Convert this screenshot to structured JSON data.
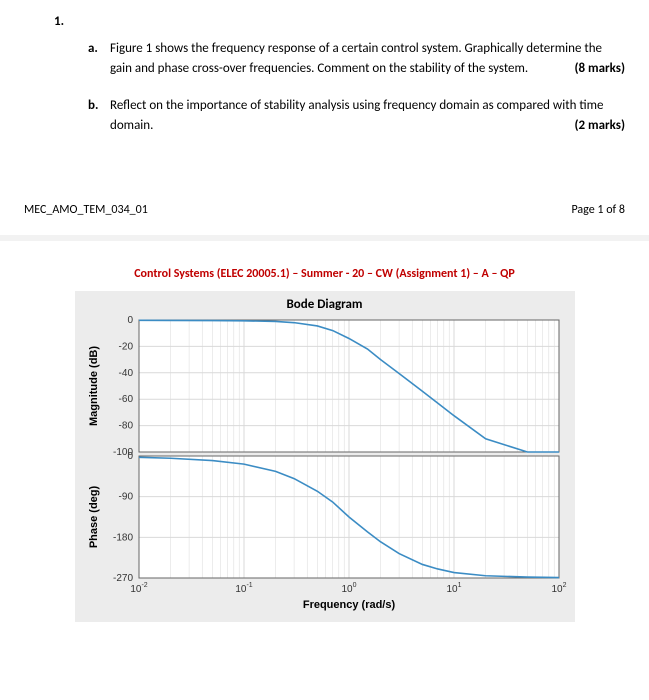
{
  "question": {
    "number": "1.",
    "parts": [
      {
        "letter": "a.",
        "text": "Figure 1 shows the frequency response of a certain control system. Graphically determine the gain and phase cross-over frequencies. Comment on the stability of the system.",
        "marks": "(8 marks)"
      },
      {
        "letter": "b.",
        "text": "Reflect on the importance of stability analysis using frequency domain as compared with time domain.",
        "marks": "(2 marks)"
      }
    ]
  },
  "page_footer": {
    "left": "MEC_AMO_TEM_034_01",
    "right": "Page 1 of 8"
  },
  "course_header": "Control Systems (ELEC 20005.1) – Summer - 20 – CW (Assignment 1) – A – QP",
  "bode": {
    "title": "Bode Diagram",
    "plot_bg": "#ffffff",
    "panel_bg": "#ececec",
    "grid_color": "#d9d9d9",
    "border_color": "#666666",
    "line_color": "#3b8cc4",
    "line_width": 1.6,
    "xlabel": "Frequency  (rad/s)",
    "mag": {
      "ylabel": "Magnitude (dB)",
      "ylim": [
        -100,
        0
      ],
      "yticks": [
        0,
        -20,
        -40,
        -60,
        -80,
        -100
      ],
      "data": [
        [
          0.01,
          -0.2
        ],
        [
          0.02,
          -0.3
        ],
        [
          0.05,
          -0.4
        ],
        [
          0.1,
          -0.6
        ],
        [
          0.2,
          -1.1
        ],
        [
          0.3,
          -2.0
        ],
        [
          0.5,
          -4.5
        ],
        [
          0.7,
          -8.0
        ],
        [
          1.0,
          -14.0
        ],
        [
          1.5,
          -22.0
        ],
        [
          2.0,
          -30.0
        ],
        [
          3.0,
          -40.5
        ],
        [
          5.0,
          -54.0
        ],
        [
          7.0,
          -63.0
        ],
        [
          10.0,
          -72.5
        ],
        [
          20.0,
          -90.0
        ],
        [
          50.0,
          -100.0
        ],
        [
          100.0,
          -100.0
        ]
      ]
    },
    "phase": {
      "ylabel": "Phase (deg)",
      "ylim": [
        -270,
        0
      ],
      "yticks": [
        0,
        -90,
        -180,
        -270
      ],
      "data": [
        [
          0.01,
          -3
        ],
        [
          0.02,
          -5
        ],
        [
          0.05,
          -10
        ],
        [
          0.1,
          -18
        ],
        [
          0.2,
          -34
        ],
        [
          0.3,
          -50
        ],
        [
          0.5,
          -78
        ],
        [
          0.7,
          -102
        ],
        [
          1.0,
          -135
        ],
        [
          1.5,
          -168
        ],
        [
          2.0,
          -190
        ],
        [
          3.0,
          -216
        ],
        [
          5.0,
          -240
        ],
        [
          7.0,
          -250
        ],
        [
          10.0,
          -258
        ],
        [
          20.0,
          -265
        ],
        [
          50.0,
          -268
        ],
        [
          100.0,
          -269
        ]
      ]
    },
    "xlim_log": [
      -2,
      2
    ],
    "xticks": [
      {
        "v": -2,
        "label": "10",
        "sup": "-2"
      },
      {
        "v": -1,
        "label": "10",
        "sup": "-1"
      },
      {
        "v": 0,
        "label": "10",
        "sup": "0"
      },
      {
        "v": 1,
        "label": "10",
        "sup": "1"
      },
      {
        "v": 2,
        "label": "10",
        "sup": "2"
      }
    ],
    "minor_log": [
      2,
      3,
      4,
      5,
      6,
      7,
      8,
      9
    ]
  }
}
